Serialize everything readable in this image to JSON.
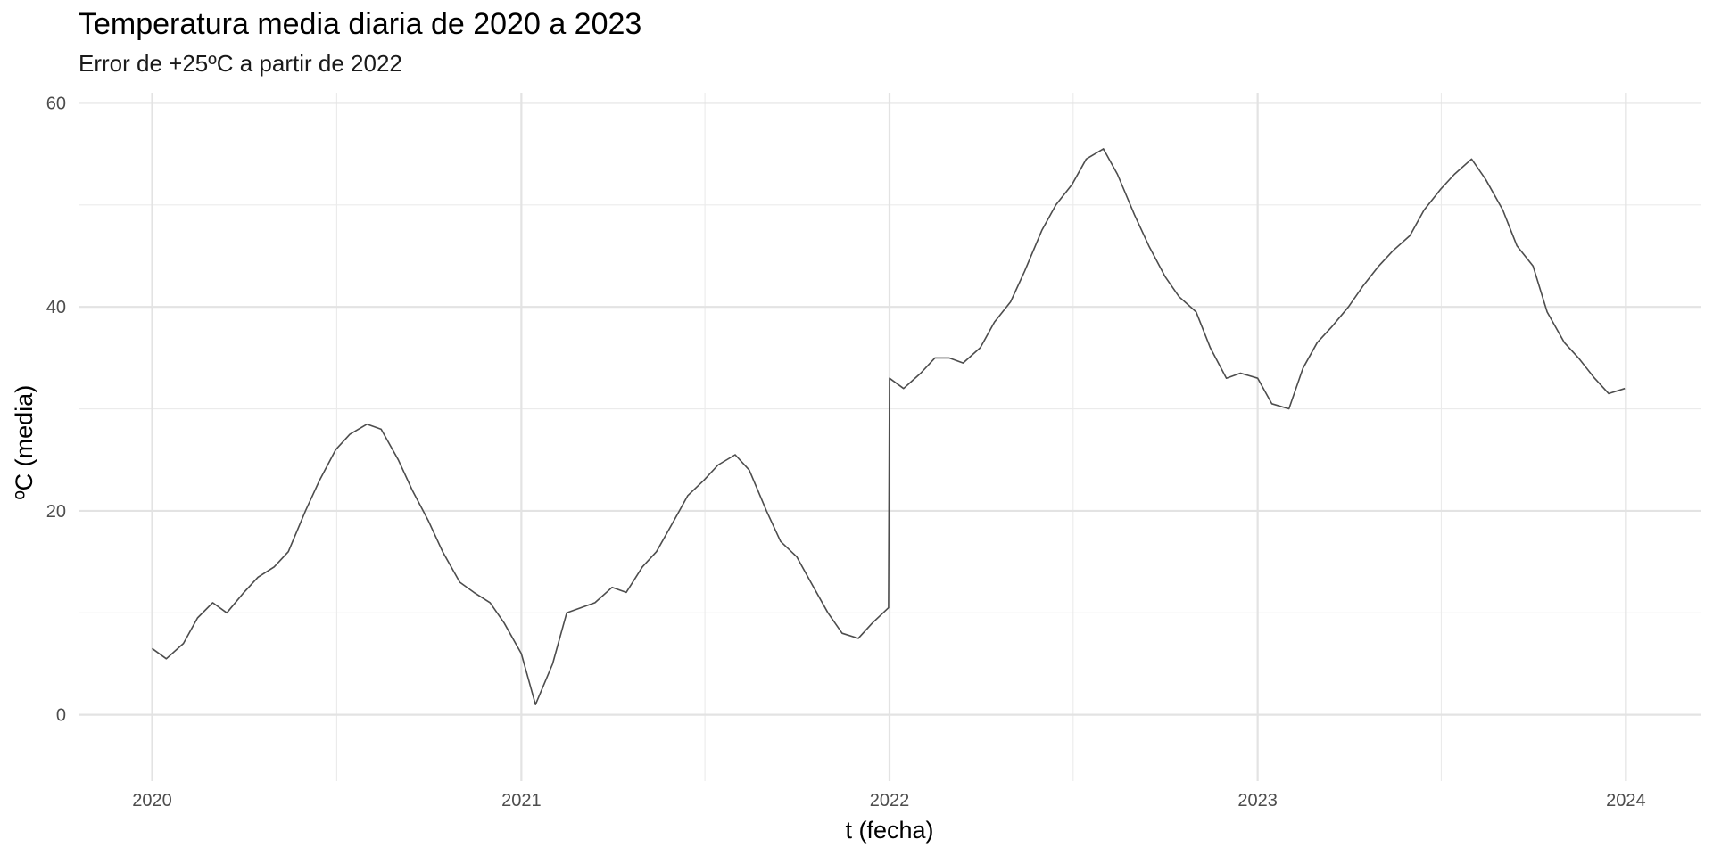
{
  "chart_data": {
    "type": "line",
    "title": "Temperatura media diaria de 2020 a 2023",
    "subtitle": "Error de +25ºC a partir de 2022",
    "xlabel": "t (fecha)",
    "ylabel": "ºC (media)",
    "x_ticks": [
      "2020",
      "2021",
      "2022",
      "2023",
      "2024"
    ],
    "y_ticks": [
      "0",
      "20",
      "40",
      "60"
    ],
    "xlim": [
      "2019-10-20",
      "2024-03-15"
    ],
    "ylim": [
      -6.5,
      61
    ],
    "grid": true,
    "line_color": "#4d4d4d",
    "series": [
      {
        "x": [
          "2020-01-01",
          "2020-01-15",
          "2020-02-01",
          "2020-02-15",
          "2020-03-01",
          "2020-03-15",
          "2020-04-01",
          "2020-04-15",
          "2020-05-01",
          "2020-05-15",
          "2020-06-01",
          "2020-06-15",
          "2020-07-01",
          "2020-07-15",
          "2020-08-01",
          "2020-08-15",
          "2020-09-01",
          "2020-09-15",
          "2020-10-01",
          "2020-10-15",
          "2020-11-01",
          "2020-11-15",
          "2020-12-01",
          "2020-12-15",
          "2021-01-01",
          "2021-01-15",
          "2021-02-01",
          "2021-02-15",
          "2021-03-01",
          "2021-03-15",
          "2021-04-01",
          "2021-04-15",
          "2021-05-01",
          "2021-05-15",
          "2021-06-01",
          "2021-06-15",
          "2021-07-01",
          "2021-07-15",
          "2021-08-01",
          "2021-08-15",
          "2021-09-01",
          "2021-09-15",
          "2021-10-01",
          "2021-10-15",
          "2021-11-01",
          "2021-11-15",
          "2021-12-01",
          "2021-12-15",
          "2021-12-31",
          "2022-01-01",
          "2022-01-15",
          "2022-02-01",
          "2022-02-15",
          "2022-03-01",
          "2022-03-15",
          "2022-04-01",
          "2022-04-15",
          "2022-05-01",
          "2022-05-15",
          "2022-06-01",
          "2022-06-15",
          "2022-07-01",
          "2022-07-15",
          "2022-08-01",
          "2022-08-15",
          "2022-09-01",
          "2022-09-15",
          "2022-10-01",
          "2022-10-15",
          "2022-11-01",
          "2022-11-15",
          "2022-12-01",
          "2022-12-15",
          "2023-01-01",
          "2023-01-15",
          "2023-02-01",
          "2023-02-15",
          "2023-03-01",
          "2023-03-15",
          "2023-04-01",
          "2023-04-15",
          "2023-05-01",
          "2023-05-15",
          "2023-06-01",
          "2023-06-15",
          "2023-07-01",
          "2023-07-15",
          "2023-08-01",
          "2023-08-15",
          "2023-09-01",
          "2023-09-15",
          "2023-10-01",
          "2023-10-15",
          "2023-11-01",
          "2023-11-15",
          "2023-12-01",
          "2023-12-15",
          "2023-12-31"
        ],
        "values": [
          6.5,
          5.5,
          7.0,
          9.5,
          11.0,
          10.0,
          12.0,
          13.5,
          14.5,
          16.0,
          20.0,
          23.0,
          26.0,
          27.5,
          28.5,
          28.0,
          25.0,
          22.0,
          19.0,
          16.0,
          13.0,
          12.0,
          11.0,
          9.0,
          6.0,
          1.0,
          5.0,
          10.0,
          10.5,
          11.0,
          12.5,
          12.0,
          14.5,
          16.0,
          19.0,
          21.5,
          23.0,
          24.5,
          25.5,
          24.0,
          20.0,
          17.0,
          15.5,
          13.0,
          10.0,
          8.0,
          7.5,
          9.0,
          10.5,
          33.0,
          32.0,
          33.5,
          35.0,
          35.0,
          34.5,
          36.0,
          38.5,
          40.5,
          43.5,
          47.5,
          50.0,
          52.0,
          54.5,
          55.5,
          53.0,
          49.0,
          46.0,
          43.0,
          41.0,
          39.5,
          36.0,
          33.0,
          33.5,
          33.0,
          30.5,
          30.0,
          34.0,
          36.5,
          38.0,
          40.0,
          42.0,
          44.0,
          45.5,
          47.0,
          49.5,
          51.5,
          53.0,
          54.5,
          52.5,
          49.5,
          46.0,
          44.0,
          39.5,
          36.5,
          35.0,
          33.0,
          31.5,
          32.0
        ]
      }
    ]
  }
}
